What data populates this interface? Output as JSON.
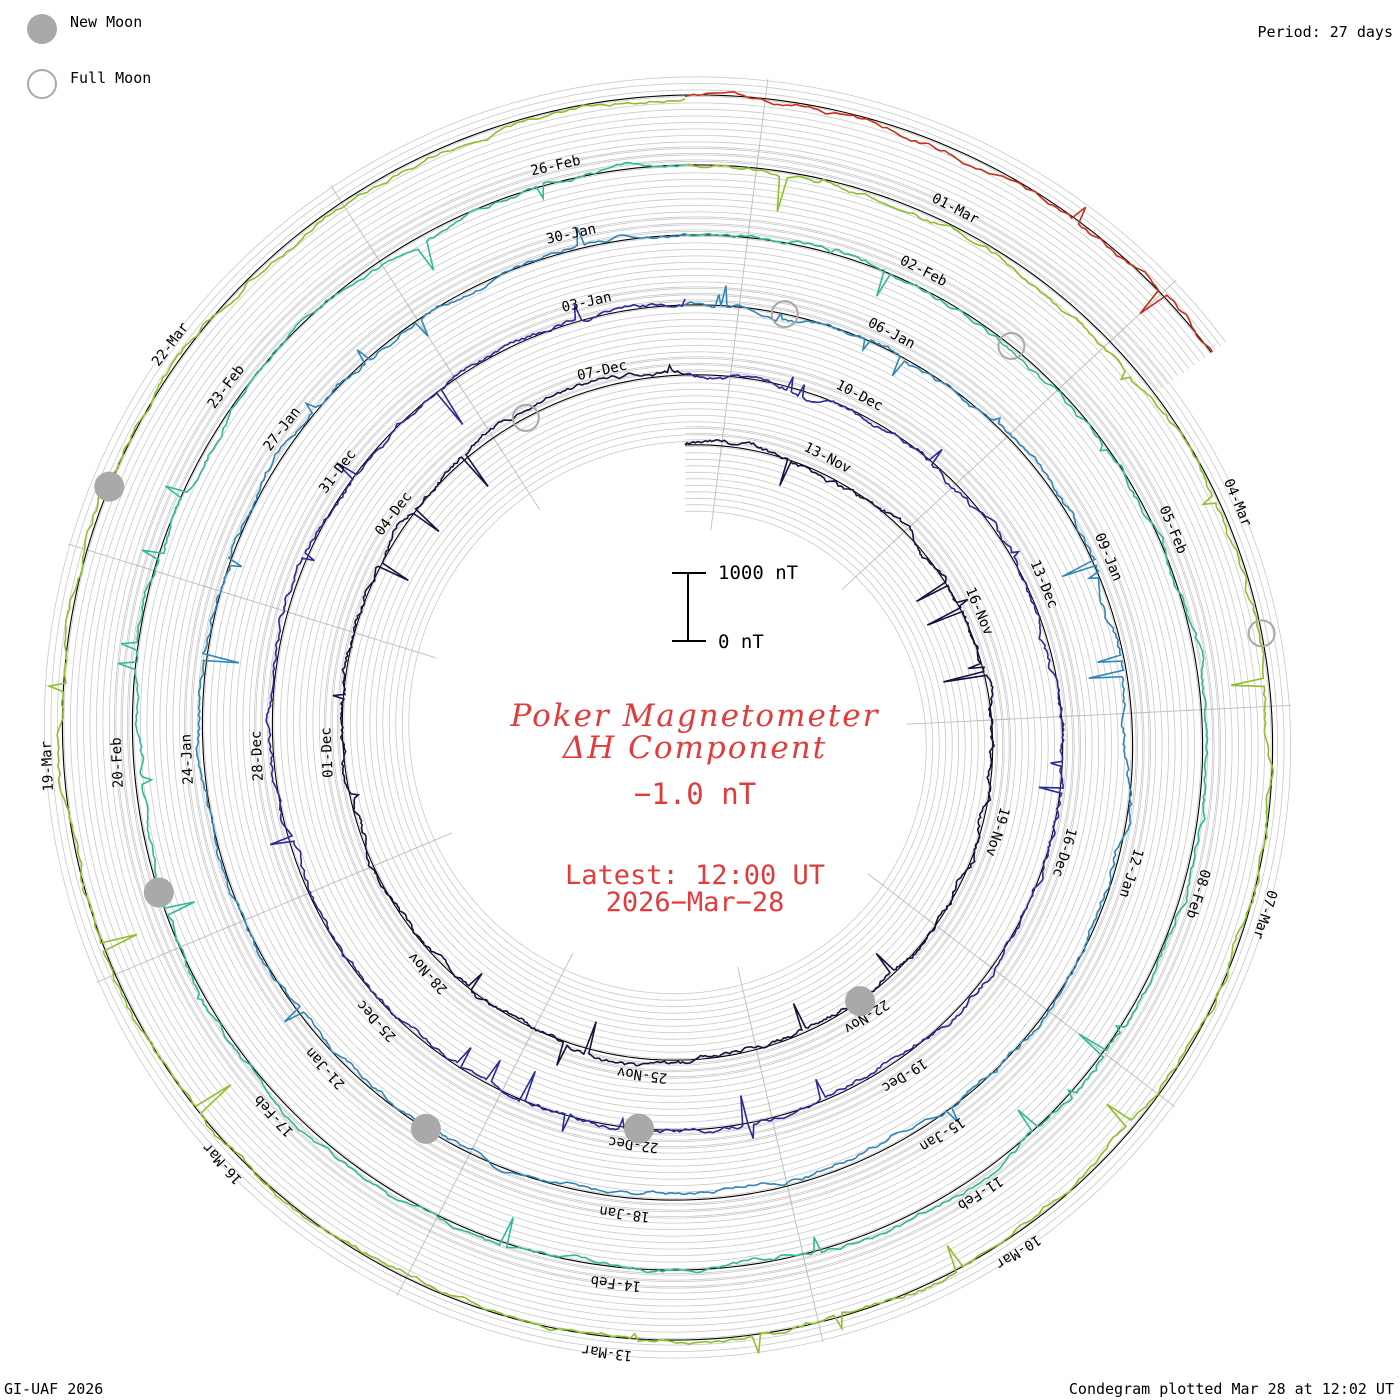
{
  "legend": {
    "new_moon_label": "New Moon",
    "full_moon_label": "Full Moon",
    "new_moon_color": "#a9a9a9",
    "full_moon_color": "#a9a9a9"
  },
  "period_label": "Period: 27 days",
  "credit": "GI-UAF 2026",
  "plotted_label": "Condegram plotted Mar 28 at 12:02 UT",
  "title": {
    "line1": "Poker Magnetometer",
    "line2": "ΔH Component",
    "current_value": "−1.0 nT",
    "latest_label": "Latest: 12:00 UT",
    "latest_date": "2026−Mar−28",
    "color": "#e23b3b"
  },
  "scale_bar": {
    "top_label": "1000 nT",
    "bottom_label": "0 nT",
    "top_value": 1000,
    "bottom_value": 0
  },
  "chart_data": {
    "type": "condegram",
    "title": "Poker Magnetometer ΔH Component",
    "period_days": 27,
    "units": "nT",
    "latest_value": -1.0,
    "rotations": [
      {
        "name": "rotation-1",
        "color": "#1a1040",
        "start": "2025-11-09",
        "end": "2025-12-06",
        "labels": [
          "13-Nov",
          "16-Nov",
          "19-Nov",
          "22-Nov",
          "25-Nov",
          "28-Nov",
          "01-Dec",
          "04-Dec"
        ],
        "label_angles_deg": [
          0,
          40,
          80,
          120,
          160,
          200,
          240,
          280
        ]
      },
      {
        "name": "rotation-2",
        "color": "#2a2a9e",
        "start": "2025-12-06",
        "end": "2026-01-02",
        "labels": [
          "10-Dec",
          "13-Dec",
          "16-Dec",
          "19-Dec",
          "22-Dec",
          "25-Dec",
          "28-Dec",
          "31-Dec"
        ],
        "label_angles_deg": [
          0,
          40,
          80,
          120,
          160,
          200,
          240,
          280
        ]
      },
      {
        "name": "rotation-3",
        "color": "#2f86b7",
        "start": "2026-01-02",
        "end": "2026-01-29",
        "labels": [
          "06-Jan",
          "09-Jan",
          "12-Jan",
          "15-Jan",
          "18-Jan",
          "21-Jan",
          "24-Jan",
          "27-Jan"
        ],
        "label_angles_deg": [
          0,
          40,
          80,
          120,
          160,
          200,
          240,
          280
        ]
      },
      {
        "name": "rotation-4",
        "color": "#2fb99a",
        "start": "2026-01-29",
        "end": "2026-02-25",
        "labels": [
          "02-Feb",
          "05-Feb",
          "08-Feb",
          "11-Feb",
          "14-Feb",
          "17-Feb",
          "20-Feb",
          "23-Feb"
        ],
        "label_angles_deg": [
          0,
          40,
          80,
          120,
          160,
          200,
          240,
          280
        ]
      },
      {
        "name": "rotation-5",
        "color": "#8fbf2a",
        "start": "2026-02-25",
        "end": "2026-03-24",
        "labels": [
          "01-Mar",
          "04-Mar",
          "07-Mar",
          "10-Mar",
          "13-Mar",
          "16-Mar",
          "19-Mar",
          "22-Mar"
        ],
        "label_angles_deg": [
          0,
          40,
          80,
          120,
          160,
          200,
          240,
          280
        ]
      },
      {
        "name": "rotation-6",
        "color": "#c9301e",
        "start": "2026-03-24",
        "end": "2026-03-28",
        "labels": [],
        "label_angles_deg": []
      }
    ],
    "spiral_labels": [
      {
        "text": "13-Nov"
      },
      {
        "text": "16-Nov"
      },
      {
        "text": "19-Nov"
      },
      {
        "text": "22-Nov"
      },
      {
        "text": "25-Nov"
      },
      {
        "text": "28-Nov"
      },
      {
        "text": "01-Dec"
      },
      {
        "text": "04-Dec"
      },
      {
        "text": "07-Dec"
      },
      {
        "text": "10-Dec"
      },
      {
        "text": "13-Dec"
      },
      {
        "text": "16-Dec"
      },
      {
        "text": "19-Dec"
      },
      {
        "text": "22-Dec"
      },
      {
        "text": "25-Dec"
      },
      {
        "text": "28-Dec"
      },
      {
        "text": "31-Dec"
      },
      {
        "text": "03-Jan"
      },
      {
        "text": "06-Jan"
      },
      {
        "text": "09-Jan"
      },
      {
        "text": "12-Jan"
      },
      {
        "text": "15-Jan"
      },
      {
        "text": "18-Jan"
      },
      {
        "text": "21-Jan"
      },
      {
        "text": "24-Jan"
      },
      {
        "text": "27-Jan"
      },
      {
        "text": "30-Jan"
      },
      {
        "text": "02-Feb"
      },
      {
        "text": "05-Feb"
      },
      {
        "text": "08-Feb"
      },
      {
        "text": "11-Feb"
      },
      {
        "text": "14-Feb"
      },
      {
        "text": "17-Feb"
      },
      {
        "text": "20-Feb"
      },
      {
        "text": "23-Feb"
      },
      {
        "text": "26-Feb"
      },
      {
        "text": "01-Mar"
      },
      {
        "text": "04-Mar"
      },
      {
        "text": "07-Mar"
      },
      {
        "text": "10-Mar"
      },
      {
        "text": "13-Mar"
      },
      {
        "text": "16-Mar"
      },
      {
        "text": "19-Mar"
      },
      {
        "text": "22-Mar"
      }
    ],
    "moon_phases": [
      {
        "type": "new",
        "date": "2025-11-20"
      },
      {
        "type": "full",
        "date": "2025-12-04"
      },
      {
        "type": "new",
        "date": "2025-12-20"
      },
      {
        "type": "full",
        "date": "2026-01-03"
      },
      {
        "type": "new",
        "date": "2026-01-18"
      },
      {
        "type": "full",
        "date": "2026-02-01"
      },
      {
        "type": "new",
        "date": "2026-02-17"
      },
      {
        "type": "full",
        "date": "2026-03-03"
      },
      {
        "type": "new",
        "date": "2026-03-19"
      }
    ],
    "colors": [
      "#1a1040",
      "#2a2a9e",
      "#2f86b7",
      "#2fb99a",
      "#5cc04a",
      "#b3b32a",
      "#d08a20",
      "#c9301e"
    ]
  }
}
